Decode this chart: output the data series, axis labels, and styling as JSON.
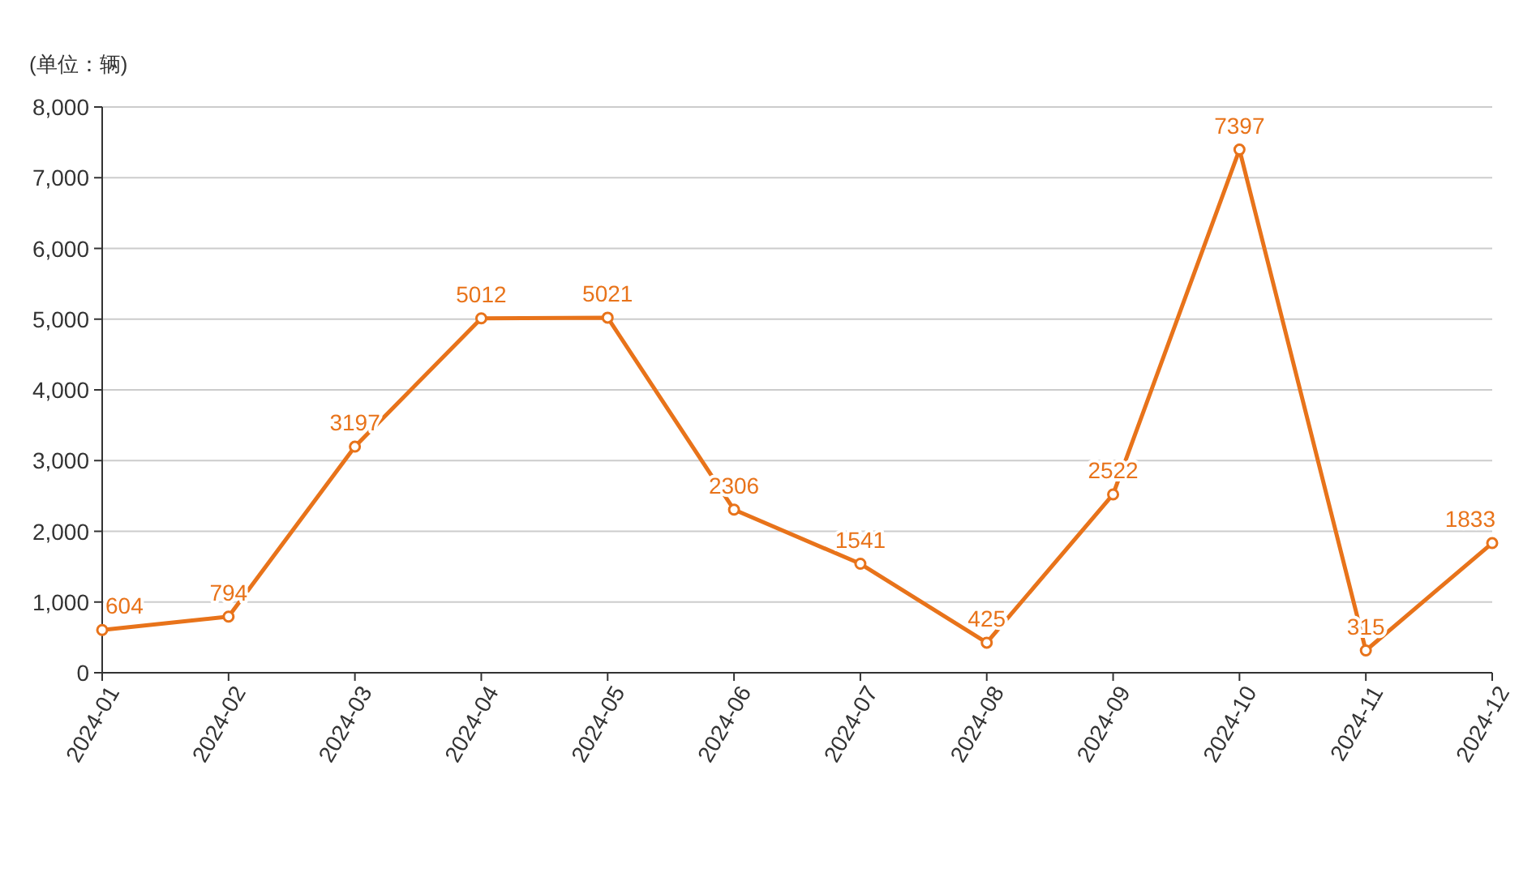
{
  "chart_data": {
    "type": "line",
    "ylabel": "(单位：辆)",
    "categories": [
      "2024-01",
      "2024-02",
      "2024-03",
      "2024-04",
      "2024-05",
      "2024-06",
      "2024-07",
      "2024-08",
      "2024-09",
      "2024-10",
      "2024-11",
      "2024-12"
    ],
    "series": [
      {
        "color": "#e8731a",
        "values": [
          604,
          794,
          3197,
          5012,
          5021,
          2306,
          1541,
          425,
          2522,
          7397,
          315,
          1833
        ]
      }
    ],
    "ylim": [
      0,
      8000
    ],
    "yticks": [
      0,
      {
        "value": 1000,
        "label": "1,000"
      },
      {
        "value": 2000,
        "label": "2,000"
      },
      {
        "value": 3000,
        "label": "3,000"
      },
      {
        "value": 4000,
        "label": "4,000"
      },
      {
        "value": 5000,
        "label": "5,000"
      },
      {
        "value": 6000,
        "label": "6,000"
      },
      {
        "value": 7000,
        "label": "7,000"
      },
      {
        "value": 8000,
        "label": "8,000"
      }
    ],
    "grid": "y",
    "marker": "circle",
    "line_style": "solid",
    "data_labels": true
  }
}
